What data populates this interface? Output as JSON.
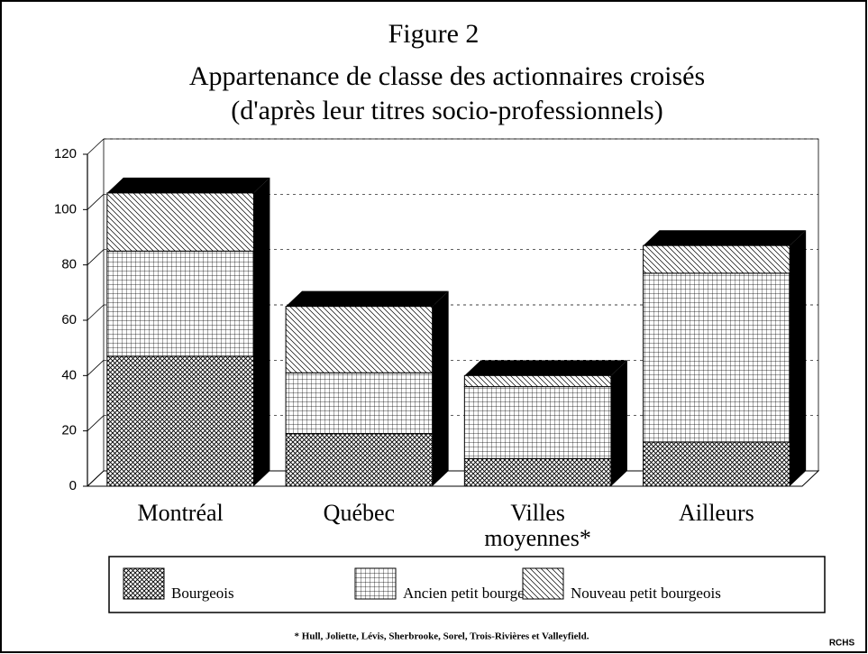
{
  "chart_data": {
    "type": "stacked_bar_3d",
    "title": "Figure 2",
    "subtitle": [
      "Appartenance de classe des actionnaires croisés",
      "(d'après leur titres socio-professionnels)"
    ],
    "categories": [
      "Montréal",
      "Québec",
      "Villes moyennes*",
      "Ailleurs"
    ],
    "series": [
      {
        "name": "Bourgeois",
        "color": "#000000",
        "pattern": "crosshatch",
        "values": [
          47,
          19,
          10,
          16
        ]
      },
      {
        "name": "Ancien petit bourgeois",
        "color": "#000000",
        "pattern": "grid",
        "values": [
          38,
          22,
          26,
          61
        ]
      },
      {
        "name": "Nouveau petit bourgeois",
        "color": "#000000",
        "pattern": "diagonal",
        "values": [
          21,
          24,
          4,
          10
        ]
      }
    ],
    "ylim": [
      0,
      120
    ],
    "yticks": [
      0,
      20,
      40,
      60,
      80,
      100,
      120
    ],
    "grid": true,
    "footnote": "* Hull, Joliette, Lévis, Sherbrooke, Sorel, Trois-Rivières et Valleyfield.",
    "credit": "RCHS"
  }
}
